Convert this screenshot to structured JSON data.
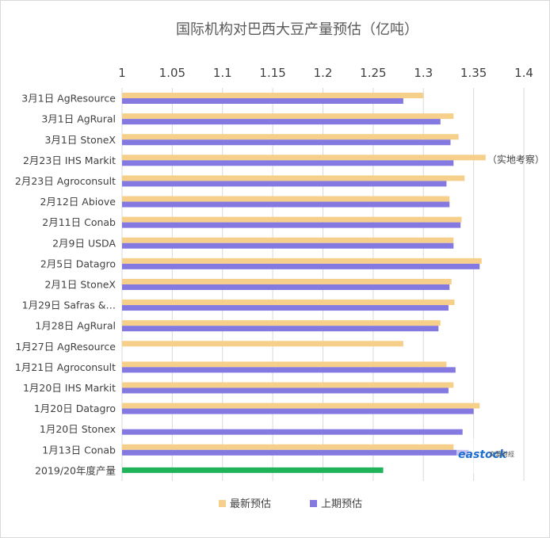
{
  "chart_data": {
    "type": "bar",
    "orientation": "horizontal",
    "title": "国际机构对巴西大豆产量预估（亿吨）",
    "xlim": [
      1,
      1.4
    ],
    "xticks": [
      "1",
      "1.05",
      "1.1",
      "1.15",
      "1.2",
      "1.25",
      "1.3",
      "1.35",
      "1.4"
    ],
    "grid": true,
    "legend": "bottom",
    "categories": [
      "3月1日 AgResource",
      "3月1日 AgRural",
      "3月1日 StoneX",
      "2月23日 IHS Markit",
      "2月23日 Agroconsult",
      "2月12日 Abiove",
      "2月11日 Conab",
      "2月9日 USDA",
      "2月5日 Datagro",
      "2月1日 StoneX",
      "1月29日 Safras &…",
      "1月28日 AgRural",
      "1月27日 AgResource",
      "1月21日 Agroconsult",
      "1月20日 IHS Markit",
      "1月20日 Datagro",
      "1月20日 Stonex",
      "1月13日 Conab",
      "2019/20年度产量"
    ],
    "series": [
      {
        "name": "最新预估",
        "color": "#f6d08b",
        "values": [
          1.3,
          1.33,
          1.335,
          1.362,
          1.341,
          1.326,
          1.338,
          1.33,
          1.358,
          1.328,
          1.331,
          1.317,
          1.28,
          1.323,
          1.33,
          1.356,
          null,
          1.33,
          null
        ]
      },
      {
        "name": "上期预估",
        "color": "#8479e1",
        "values": [
          1.28,
          1.317,
          1.327,
          1.33,
          1.323,
          1.326,
          1.337,
          1.33,
          1.356,
          1.326,
          1.325,
          1.315,
          null,
          1.332,
          1.325,
          1.35,
          1.339,
          1.345,
          null
        ]
      }
    ],
    "actual": {
      "category": "2019/20年度产量",
      "value": 1.26,
      "color": "#21b35a"
    },
    "annotation": {
      "category": "2月23日 IHS Markit",
      "text": "（实地考察）"
    }
  },
  "watermark": {
    "brand": "eastock",
    "brand_color_1": "#1f6fd1",
    "brand_color_2": "#f0a020",
    "subtitle": "文華財經"
  }
}
